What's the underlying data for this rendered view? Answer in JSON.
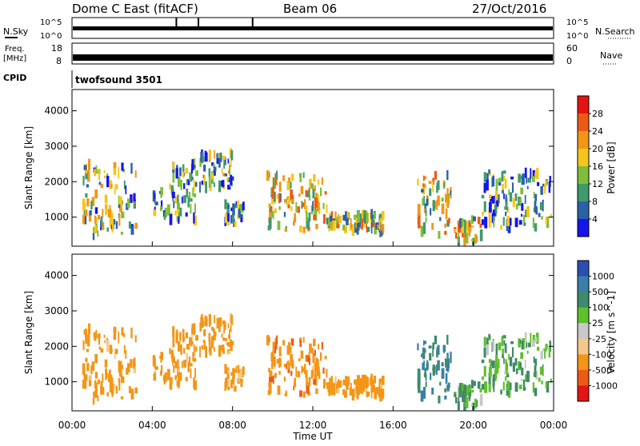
{
  "header": {
    "title": "Dome C East (fitACF)",
    "beam": "Beam 06",
    "date": "27/Oct/2016"
  },
  "noise_panel": {
    "left_label": "N.Sky",
    "left_ticks": [
      "10^5",
      "10^0"
    ],
    "right_ticks": [
      "10^5",
      "10^0"
    ],
    "right_label": "N.Search"
  },
  "freq_panel": {
    "left_label_line1": "Freq.",
    "left_label_line2": "[MHz]",
    "left_ticks": [
      "18",
      "8"
    ],
    "right_ticks": [
      "60",
      "0"
    ],
    "right_label": "Nave"
  },
  "cpid": {
    "label": "CPID",
    "value": "twofsound 3501"
  },
  "x_axis": {
    "tick_labels": [
      "00:00",
      "04:00",
      "08:00",
      "12:00",
      "16:00",
      "20:00",
      "00:00"
    ],
    "label": "Time UT"
  },
  "panels": [
    {
      "ylabel": "Slant Range [km]",
      "yticks": [
        "4000",
        "3000",
        "2000",
        "1000"
      ],
      "colorbar_label": "Power [dB]",
      "colorbar_ticks": [
        "28",
        "24",
        "20",
        "16",
        "12",
        "8",
        "4"
      ],
      "colors": [
        "#e41414",
        "#ee5a16",
        "#f39617",
        "#f6c51a",
        "#7fbe3a",
        "#3f9a6d",
        "#2a62a8",
        "#1515ee"
      ]
    },
    {
      "ylabel": "Slant Range [km]",
      "yticks": [
        "4000",
        "3000",
        "2000",
        "1000"
      ],
      "colorbar_label": "Velocity [m s^-1]",
      "colorbar_ticks": [
        "1000",
        "500",
        "100",
        "25",
        "-25",
        "-100",
        "-500",
        "-1000"
      ],
      "colors": [
        "#2a4fb0",
        "#3a7fa8",
        "#3f8a6a",
        "#5fc02a",
        "#c8c8c8",
        "#f5c88a",
        "#f39617",
        "#ee5a16",
        "#e41414"
      ]
    }
  ],
  "chart_data": [
    {
      "type": "heatmap",
      "title": "Power [dB]",
      "xlabel": "Time UT",
      "ylabel": "Slant Range [km]",
      "xlim": [
        "00:00",
        "24:00"
      ],
      "ylim": [
        180,
        4600
      ],
      "color_scale": [
        4,
        8,
        12,
        16,
        20,
        24,
        28
      ],
      "echo_regions": [
        {
          "t_start": "00:30",
          "t_end": "03:10",
          "r_start": 450,
          "r_end": 2500,
          "peak_power_db": 24
        },
        {
          "t_start": "04:00",
          "t_end": "06:10",
          "r_start": 900,
          "r_end": 2500,
          "peak_power_db": 20
        },
        {
          "t_start": "06:20",
          "t_end": "08:00",
          "r_start": 1800,
          "r_end": 2800,
          "peak_power_db": 22
        },
        {
          "t_start": "07:30",
          "t_end": "08:30",
          "r_start": 800,
          "r_end": 1400,
          "peak_power_db": 20
        },
        {
          "t_start": "09:40",
          "t_end": "12:40",
          "r_start": 600,
          "r_end": 2200,
          "peak_power_db": 28
        },
        {
          "t_start": "12:40",
          "t_end": "15:30",
          "r_start": 600,
          "r_end": 1100,
          "peak_power_db": 26
        },
        {
          "t_start": "17:10",
          "t_end": "18:50",
          "r_start": 500,
          "r_end": 2200,
          "peak_power_db": 28
        },
        {
          "t_start": "19:00",
          "t_end": "20:20",
          "r_start": 300,
          "r_end": 1000,
          "peak_power_db": 28
        },
        {
          "t_start": "20:20",
          "t_end": "23:50",
          "r_start": 700,
          "r_end": 2300,
          "peak_power_db": 20
        }
      ]
    },
    {
      "type": "heatmap",
      "title": "Velocity [m s^-1]",
      "xlabel": "Time UT",
      "ylabel": "Slant Range [km]",
      "xlim": [
        "00:00",
        "24:00"
      ],
      "ylim": [
        180,
        4600
      ],
      "color_scale": [
        1000,
        500,
        100,
        25,
        -25,
        -100,
        -500,
        -1000
      ],
      "echo_regions": [
        {
          "t_start": "00:30",
          "t_end": "03:10",
          "r_start": 450,
          "r_end": 2500,
          "typical_velocity": -300
        },
        {
          "t_start": "04:00",
          "t_end": "06:10",
          "r_start": 900,
          "r_end": 2500,
          "typical_velocity": -300
        },
        {
          "t_start": "06:20",
          "t_end": "08:00",
          "r_start": 1800,
          "r_end": 2800,
          "typical_velocity": -300
        },
        {
          "t_start": "09:40",
          "t_end": "12:40",
          "r_start": 600,
          "r_end": 2200,
          "typical_velocity": -400
        },
        {
          "t_start": "12:40",
          "t_end": "15:30",
          "r_start": 600,
          "r_end": 1100,
          "typical_velocity": -300
        },
        {
          "t_start": "17:10",
          "t_end": "18:50",
          "r_start": 500,
          "r_end": 2200,
          "typical_velocity": 500
        },
        {
          "t_start": "19:00",
          "t_end": "20:20",
          "r_start": 300,
          "r_end": 1000,
          "typical_velocity": 100
        },
        {
          "t_start": "20:20",
          "t_end": "23:50",
          "r_start": 700,
          "r_end": 2300,
          "typical_velocity": 100
        }
      ]
    }
  ]
}
